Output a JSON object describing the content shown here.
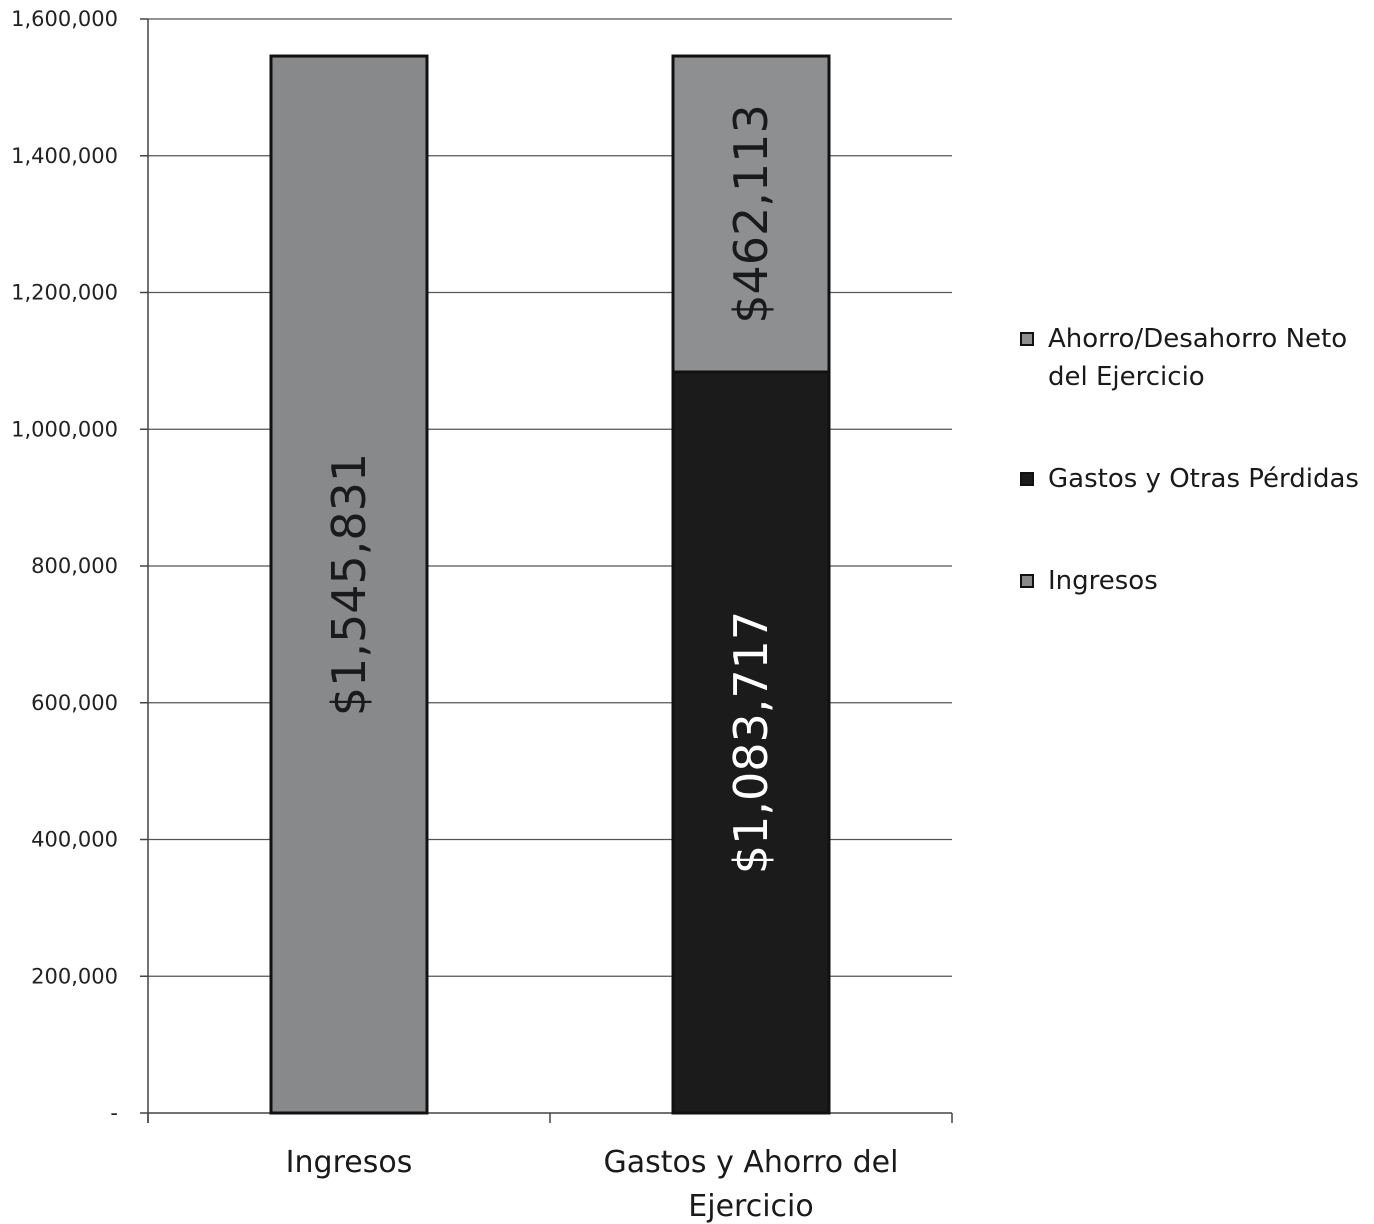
{
  "chart_data": {
    "type": "bar",
    "stacked": true,
    "categories": [
      "Ingresos",
      "Gastos y Ahorro del Ejercicio"
    ],
    "series": [
      {
        "name": "Ingresos",
        "values": [
          1545831,
          0
        ],
        "color": "#88898b",
        "label_color": "#1a1a1a",
        "labels": [
          "$1,545,831",
          ""
        ]
      },
      {
        "name": "Gastos y Otras Pérdidas",
        "values": [
          0,
          1083717
        ],
        "color": "#1b1b1b",
        "label_color": "#ffffff",
        "labels": [
          "",
          "$1,083,717"
        ]
      },
      {
        "name": "Ahorro/Desahorro Neto del Ejercicio",
        "values": [
          0,
          462113
        ],
        "color": "#8e8f91",
        "label_color": "#1a1a1a",
        "labels": [
          "",
          "$462,113"
        ]
      }
    ],
    "ylim": [
      0,
      1600000
    ],
    "yticks": [
      0,
      200000,
      400000,
      600000,
      800000,
      1000000,
      1200000,
      1400000,
      1600000
    ],
    "ytick_labels": [
      "-",
      "200,000",
      "400,000",
      "600,000",
      "800,000",
      "1,000,000",
      "1,200,000",
      "1,400,000",
      "1,600,000"
    ],
    "grid": true,
    "legend_position": "right",
    "legend_order": [
      {
        "name": "Ahorro/Desahorro Neto del Ejercicio",
        "color": "#8e8f91",
        "lines": [
          "Ahorro/Desahorro Neto",
          "del Ejercicio"
        ]
      },
      {
        "name": "Gastos y Otras Pérdidas",
        "color": "#1b1b1b",
        "lines": [
          "Gastos y Otras Pérdidas"
        ]
      },
      {
        "name": "Ingresos",
        "color": "#88898b",
        "lines": [
          "Ingresos"
        ]
      }
    ],
    "x_label_lines": [
      [
        "Ingresos"
      ],
      [
        "Gastos y Ahorro del",
        "Ejercicio"
      ]
    ]
  }
}
